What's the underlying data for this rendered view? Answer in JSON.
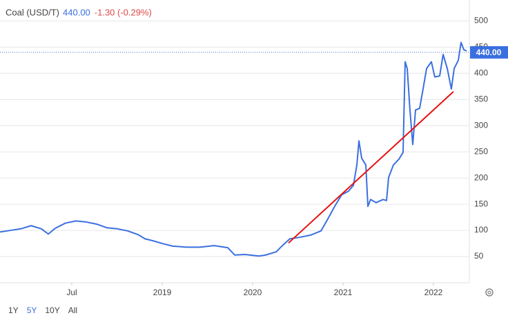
{
  "chart_data": {
    "type": "line",
    "title": "Coal (USD/T)",
    "price": {
      "value": 440,
      "label": "440.00"
    },
    "change": "-1.30 (-0.29%)",
    "x": [
      2017.206,
      2017.321,
      2017.435,
      2017.55,
      2017.664,
      2017.74,
      2017.817,
      2017.931,
      2018.046,
      2018.16,
      2018.275,
      2018.389,
      2018.504,
      2018.618,
      2018.733,
      2018.809,
      2018.901,
      2019.0,
      2019.115,
      2019.267,
      2019.42,
      2019.573,
      2019.725,
      2019.802,
      2019.916,
      2020.069,
      2020.145,
      2020.26,
      2020.336,
      2020.412,
      2020.527,
      2020.641,
      2020.756,
      2020.832,
      2020.908,
      2020.985,
      2021.061,
      2021.115,
      2021.153,
      2021.176,
      2021.206,
      2021.252,
      2021.275,
      2021.305,
      2021.366,
      2021.443,
      2021.481,
      2021.504,
      2021.557,
      2021.618,
      2021.664,
      2021.687,
      2021.71,
      2021.74,
      2021.771,
      2021.802,
      2021.847,
      2021.885,
      2021.924,
      2021.977,
      2022.015,
      2022.069,
      2022.107,
      2022.153,
      2022.198,
      2022.229,
      2022.275,
      2022.305,
      2022.336,
      2022.366
    ],
    "values": [
      97,
      100,
      103,
      109,
      103,
      93,
      104,
      114,
      118,
      116,
      112,
      105,
      103,
      99,
      92,
      84,
      80,
      75,
      70,
      68,
      68,
      71,
      67,
      53,
      54,
      51,
      53,
      59,
      72,
      84,
      87,
      91,
      99,
      122,
      146,
      168,
      175,
      186,
      225,
      271,
      238,
      225,
      146,
      159,
      153,
      159,
      157,
      201,
      225,
      236,
      249,
      422,
      409,
      330,
      264,
      330,
      333,
      370,
      409,
      422,
      393,
      395,
      436,
      409,
      370,
      409,
      425,
      459,
      445,
      443
    ],
    "color": "#3a6fe0",
    "trendline": {
      "x": [
        2020.397,
        2022.221
      ],
      "values": [
        76,
        365
      ],
      "color": "#e61010"
    },
    "xlim": [
      2017.206,
      2022.397
    ],
    "xticks": [
      {
        "value": 2018,
        "label": "Jul"
      },
      2019,
      2020,
      2021,
      2022
    ],
    "ylim": [
      0,
      540
    ],
    "yticks": [
      50,
      100,
      150,
      200,
      250,
      300,
      350,
      400,
      450,
      500
    ],
    "grid": true,
    "ranges": [
      "1Y",
      "5Y",
      "10Y",
      "All"
    ],
    "active_range": 1
  }
}
